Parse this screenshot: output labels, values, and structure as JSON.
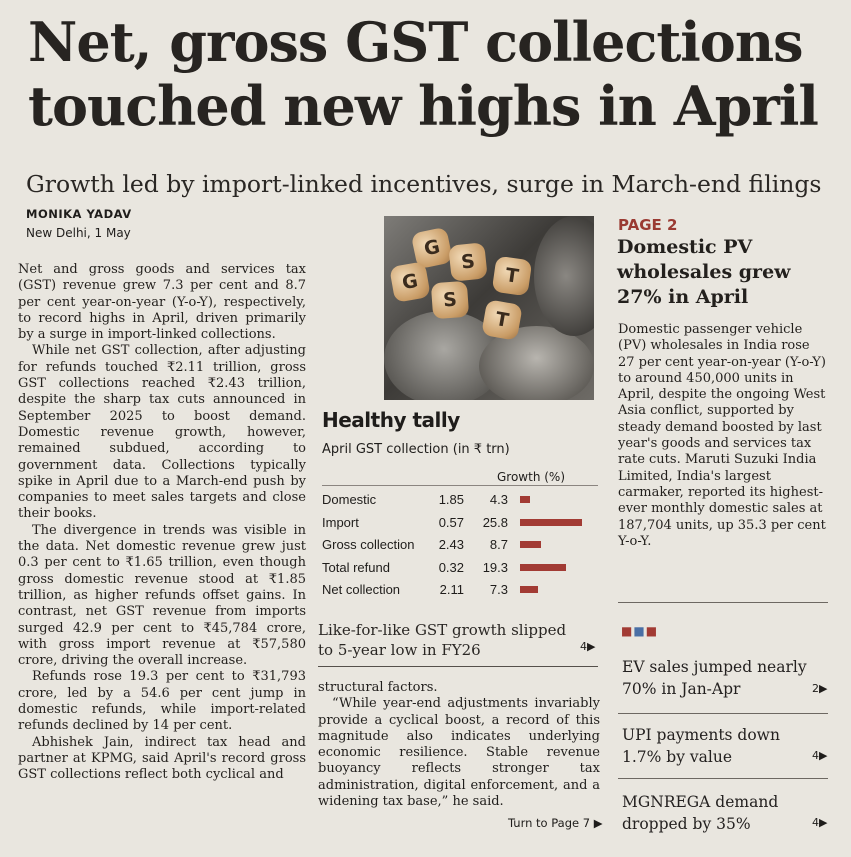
{
  "headline": {
    "line1": "Net, gross GST collections",
    "line2": "touched new highs in April"
  },
  "subheadline": "Growth led by import-linked incentives, surge in March-end filings",
  "byline": "MONIKA YADAV",
  "dateline": "New Delhi, 1 May",
  "body": [
    "Net and gross goods and services tax (GST) revenue grew 7.3 per cent and 8.7 per cent year-on-year (Y-o-Y), respectively, to record highs in April, driven primarily by a surge in import-linked collections.",
    "While net GST collection, after adjusting for refunds touched ₹2.11 trillion, gross GST collections reached ₹2.43 trillion, despite the sharp tax cuts announced in September 2025 to boost demand. Domestic revenue growth, however, remained subdued, according to government data. Collections typically spike in April due to a March-end push by companies to meet sales targets and close their books.",
    "The divergence in trends was visible in the data. Net domestic revenue grew just 0.3 per cent to ₹1.65 trillion, even though gross domestic revenue stood at ₹1.85 trillion, as higher refunds offset gains. In contrast, net GST revenue from imports surged 42.9 per cent to ₹45,784 crore, with gross import revenue at ₹57,580 crore, driving the overall increase.",
    "Refunds rose 19.3 per cent to ₹31,793 crore, led by a 54.6 per cent jump in domestic refunds, while import-related refunds declined by 14 per cent.",
    "Abhishek Jain, indirect tax head and partner at KPMG, said April's record gross GST collections reflect both cyclical and"
  ],
  "photo": {
    "cube_letters": [
      "G",
      "S",
      "T",
      "G",
      "S",
      "T"
    ]
  },
  "chart": {
    "title": "Healthy tally",
    "subtitle": "April GST collection (in ₹ trn)",
    "growth_header": "Growth (%)",
    "bar_color": "#a23b34"
  },
  "chart_data": {
    "type": "table",
    "title": "Healthy tally",
    "subtitle": "April GST collection (in ₹ trn)",
    "columns": [
      "",
      "",
      "Growth (%)"
    ],
    "categories": [
      "Domestic",
      "Import",
      "Gross collection",
      "Total refund",
      "Net collection"
    ],
    "series": [
      {
        "name": "",
        "values": [
          1.85,
          0.57,
          2.43,
          0.32,
          2.11
        ]
      },
      {
        "name": "Growth (%)",
        "values": [
          4.3,
          25.8,
          8.7,
          19.3,
          7.3
        ]
      }
    ],
    "rows": [
      {
        "label": "Domestic",
        "value": "1.85",
        "growth": "4.3",
        "growth_num": 4.3
      },
      {
        "label": "Import",
        "value": "0.57",
        "growth": "25.8",
        "growth_num": 25.8
      },
      {
        "label": "Gross collection",
        "value": "2.43",
        "growth": "8.7",
        "growth_num": 8.7
      },
      {
        "label": "Total refund",
        "value": "0.32",
        "growth": "19.3",
        "growth_num": 19.3
      },
      {
        "label": "Net collection",
        "value": "2.11",
        "growth": "7.3",
        "growth_num": 7.3
      }
    ]
  },
  "teaser": {
    "text": "Like-for-like GST growth slipped to 5-year low in FY26",
    "page": "4"
  },
  "continuation": [
    "structural factors.",
    "“While year-end adjustments invariably provide a cyclical boost, a record of this magnitude also indicates underlying economic resilience. Stable revenue buoyancy reflects stronger tax administration, digital enforcement, and a widening tax base,” he said."
  ],
  "turn_label": "Turn to Page 7",
  "sidebar": {
    "kicker": "PAGE 2",
    "headline": "Domestic PV wholesales grew 27% in April",
    "body": "Domestic passenger vehicle (PV) wholesales in India rose 27 per cent year-on-year (Y-o-Y) to around 450,000 units in April, despite the ongoing West Asia conflict, supported by steady demand boosted by last year's goods and services tax rate cuts. Maruti Suzuki India Limited, India's largest carmaker, reported its highest-ever monthly domestic sales at 187,704 units, up 35.3 per cent Y-o-Y.",
    "items": [
      {
        "text": "EV sales jumped nearly 70% in Jan-Apr",
        "page": "2"
      },
      {
        "text": "UPI payments down 1.7% by value",
        "page": "4"
      },
      {
        "text": "MGNREGA demand dropped by 35%",
        "page": "4"
      }
    ]
  }
}
